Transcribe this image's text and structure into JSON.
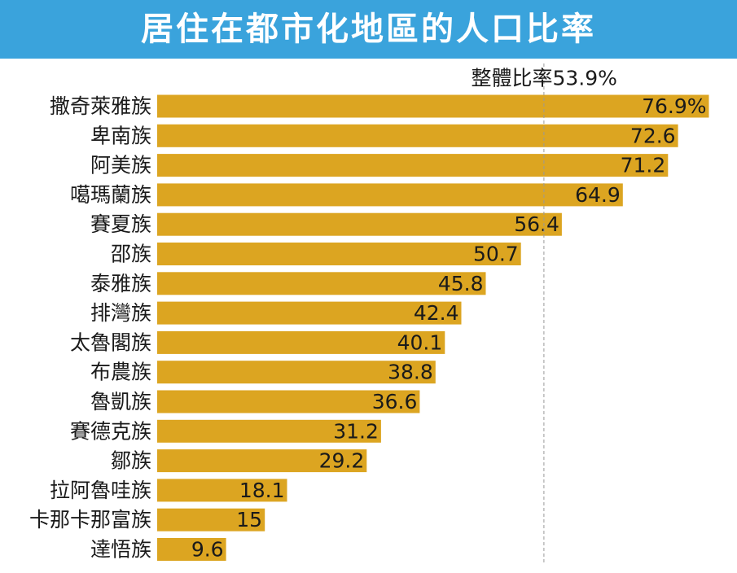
{
  "chart_data": {
    "type": "bar",
    "orientation": "horizontal",
    "title": "居住在都市化地區的人口比率",
    "categories": [
      "撒奇萊雅族",
      "卑南族",
      "阿美族",
      "噶瑪蘭族",
      "賽夏族",
      "邵族",
      "泰雅族",
      "排灣族",
      "太魯閣族",
      "布農族",
      "魯凱族",
      "賽德克族",
      "鄒族",
      "拉阿魯哇族",
      "卡那卡那富族",
      "達悟族"
    ],
    "values": [
      76.9,
      72.6,
      71.2,
      64.9,
      56.4,
      50.7,
      45.8,
      42.4,
      40.1,
      38.8,
      36.6,
      31.2,
      29.2,
      18.1,
      15,
      9.6
    ],
    "value_labels": [
      "76.9%",
      "72.6",
      "71.2",
      "64.9",
      "56.4",
      "50.7",
      "45.8",
      "42.4",
      "40.1",
      "38.8",
      "36.6",
      "31.2",
      "29.2",
      "18.1",
      "15",
      "9.6"
    ],
    "reference_line": {
      "value": 53.9,
      "label": "整體比率53.9%",
      "style": "dashed"
    },
    "xlim": [
      0,
      100
    ],
    "grid": false,
    "legend": "none",
    "colors": {
      "bar": "#dca521",
      "title_background": "#3aa3dc",
      "title_text": "#ffffff",
      "text": "#1a1a1a",
      "reference_line": "#999999"
    }
  }
}
